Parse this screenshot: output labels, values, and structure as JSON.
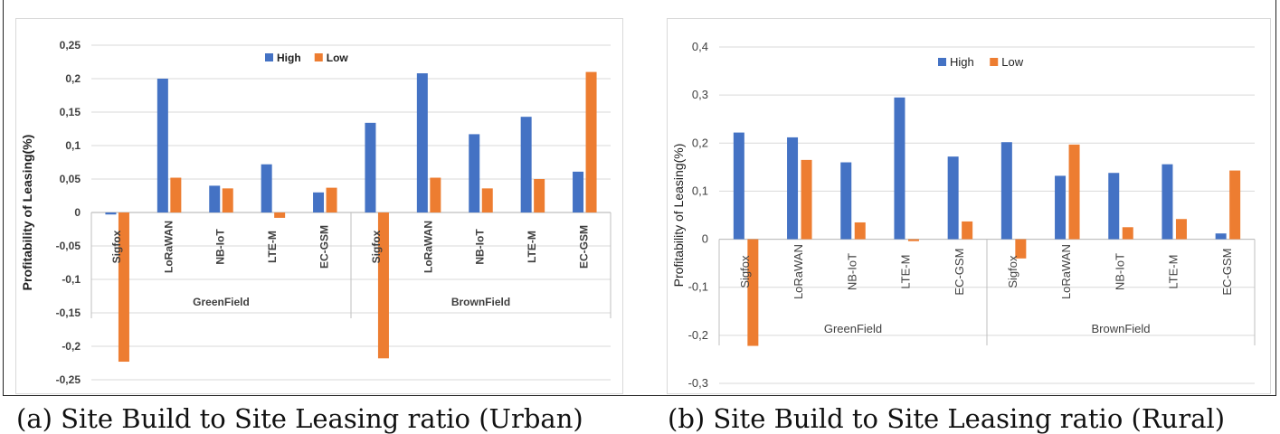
{
  "colors": {
    "high": "#4472C4",
    "low": "#ED7D31",
    "grid": "#D9D9D9",
    "axis": "#BFBFBF",
    "text": "#404040"
  },
  "panels": [
    {
      "caption": "(a) Site Build to Site Leasing ratio (Urban)",
      "chart_data": {
        "type": "bar",
        "ylabel": "Profitability of Leasing(%)",
        "yticks": [
          "0,25",
          "0,2",
          "0,15",
          "0,1",
          "0,05",
          "0",
          "-0,05",
          "-0,1",
          "-0,15",
          "-0,2",
          "-0,25"
        ],
        "ylim": [
          -0.25,
          0.25
        ],
        "categories": [
          "Sigfox",
          "LoRaWAN",
          "NB-IoT",
          "LTE-M",
          "EC-GSM",
          "Sigfox",
          "LoRaWAN",
          "NB-IoT",
          "LTE-M",
          "EC-GSM"
        ],
        "groups": [
          {
            "label": "GreenField",
            "count": 5
          },
          {
            "label": "BrownField",
            "count": 5
          }
        ],
        "series": [
          {
            "name": "High",
            "values": [
              -0.003,
              0.2,
              0.04,
              0.072,
              0.03,
              0.134,
              0.208,
              0.117,
              0.143,
              0.061
            ]
          },
          {
            "name": "Low",
            "values": [
              -0.223,
              0.052,
              0.036,
              -0.008,
              0.037,
              -0.218,
              0.052,
              0.036,
              0.05,
              0.21
            ]
          }
        ],
        "legend": "top-center",
        "grid": true
      }
    },
    {
      "caption": "(b) Site Build to Site Leasing ratio (Rural)",
      "chart_data": {
        "type": "bar",
        "ylabel": "Profitability of Leasing(%)",
        "yticks": [
          "0,4",
          "0,3",
          "0,2",
          "0,1",
          "0",
          "-0,1",
          "-0,2",
          "-0,3"
        ],
        "ylim": [
          -0.3,
          0.4
        ],
        "categories": [
          "Sigfox",
          "LoRaWAN",
          "NB-IoT",
          "LTE-M",
          "EC-GSM",
          "Sigfox",
          "LoRaWAN",
          "NB-IoT",
          "LTE-M",
          "EC-GSM"
        ],
        "groups": [
          {
            "label": "GreenField",
            "count": 5
          },
          {
            "label": "BrownField",
            "count": 5
          }
        ],
        "series": [
          {
            "name": "High",
            "values": [
              0.222,
              0.212,
              0.16,
              0.295,
              0.172,
              0.202,
              0.132,
              0.138,
              0.156,
              0.012
            ]
          },
          {
            "name": "Low",
            "values": [
              -0.222,
              0.165,
              0.035,
              -0.004,
              0.037,
              -0.04,
              0.197,
              0.025,
              0.042,
              0.143
            ]
          }
        ],
        "legend": "top-center",
        "grid": true
      }
    }
  ]
}
